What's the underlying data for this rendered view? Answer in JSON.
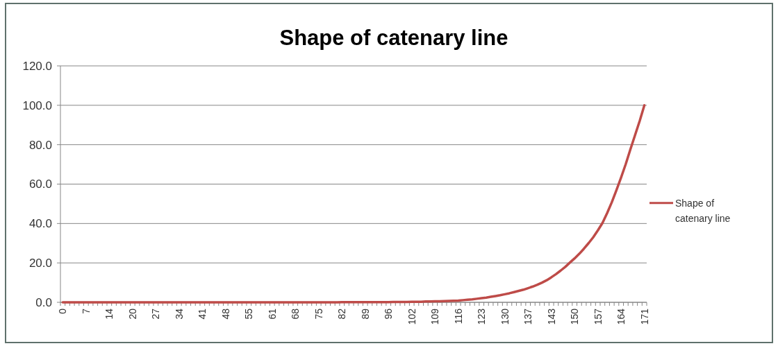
{
  "chart_data": {
    "type": "line",
    "title": "Shape of catenary line",
    "categories": [
      "0",
      null,
      null,
      null,
      null,
      "7",
      null,
      null,
      null,
      null,
      "14",
      null,
      null,
      null,
      null,
      "20",
      null,
      null,
      null,
      null,
      "27",
      null,
      null,
      null,
      null,
      "34",
      null,
      null,
      null,
      null,
      "41",
      null,
      null,
      null,
      null,
      "48",
      null,
      null,
      null,
      null,
      "55",
      null,
      null,
      null,
      null,
      "61",
      null,
      null,
      null,
      null,
      "68",
      null,
      null,
      null,
      null,
      "75",
      null,
      null,
      null,
      null,
      "82",
      null,
      null,
      null,
      null,
      "89",
      null,
      null,
      null,
      null,
      "96",
      null,
      null,
      null,
      null,
      "102",
      null,
      null,
      null,
      null,
      "109",
      null,
      null,
      null,
      null,
      "116",
      null,
      null,
      null,
      null,
      "123",
      null,
      null,
      null,
      null,
      "130",
      null,
      null,
      null,
      null,
      "137",
      null,
      null,
      null,
      null,
      "143",
      null,
      null,
      null,
      null,
      "150",
      null,
      null,
      null,
      null,
      "157",
      null,
      null,
      null,
      null,
      "164",
      null,
      null,
      null,
      null,
      "171"
    ],
    "series": [
      {
        "name": "Shape of catenary line",
        "color": "#be4b48",
        "values": [
          0.0,
          0.0,
          0.0,
          0.0,
          0.0,
          0.0,
          0.0,
          0.0,
          0.0,
          0.0,
          0.0,
          0.0,
          0.0,
          0.0,
          0.0,
          0.0,
          0.0,
          0.0,
          0.0,
          0.0,
          0.0,
          0.0,
          0.0,
          0.0,
          0.0,
          0.0,
          0.0,
          0.0,
          0.0,
          0.0,
          0.0,
          0.0,
          0.0,
          0.0,
          0.0,
          0.0,
          0.0,
          0.0,
          0.0,
          0.0,
          0.0,
          0.0,
          0.0,
          0.0,
          0.0,
          0.0,
          0.0,
          0.0,
          0.0,
          0.0,
          0.0,
          0.0,
          0.0,
          0.0,
          0.0,
          0.0,
          0.0,
          0.0,
          0.0,
          0.0,
          0.1,
          0.1,
          0.1,
          0.1,
          0.1,
          0.1,
          0.1,
          0.1,
          0.1,
          0.1,
          0.1,
          0.2,
          0.2,
          0.2,
          0.2,
          0.3,
          0.3,
          0.3,
          0.4,
          0.4,
          0.5,
          0.5,
          0.6,
          0.7,
          0.8,
          0.9,
          1.1,
          1.3,
          1.5,
          1.8,
          2.1,
          2.4,
          2.8,
          3.2,
          3.6,
          4.1,
          4.6,
          5.2,
          5.8,
          6.4,
          7.2,
          8.0,
          8.9,
          10.0,
          11.2,
          12.7,
          14.3,
          16.1,
          18.0,
          20.2,
          22.3,
          24.6,
          27.2,
          30.0,
          33.0,
          36.5,
          40.3,
          45.3,
          50.8,
          57.0,
          63.4,
          70.2,
          77.7,
          84.9,
          92.1,
          100.0
        ]
      }
    ],
    "ylim": [
      0,
      120
    ],
    "yticks": [
      {
        "value": 0,
        "label": "0.0"
      },
      {
        "value": 20,
        "label": "20.0"
      },
      {
        "value": 40,
        "label": "40.0"
      },
      {
        "value": 60,
        "label": "60.0"
      },
      {
        "value": 80,
        "label": "80.0"
      },
      {
        "value": 100,
        "label": "100.0"
      },
      {
        "value": 120,
        "label": "120.0"
      }
    ],
    "grid": "y",
    "legend": "right"
  }
}
